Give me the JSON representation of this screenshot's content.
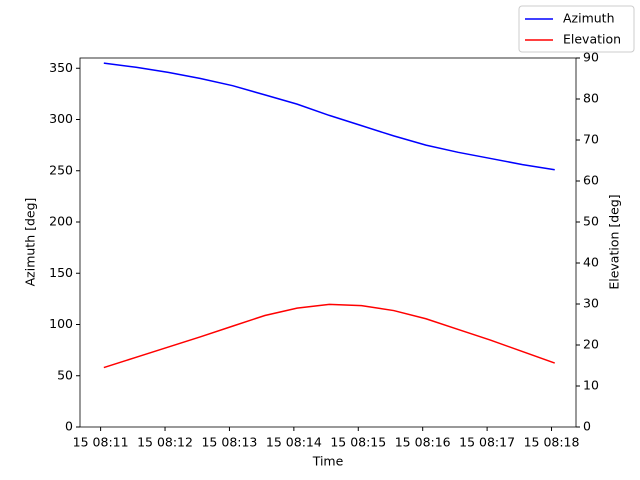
{
  "chart_data": {
    "type": "line",
    "xlabel": "Time",
    "ylabel": "Azimuth [deg]",
    "y2label": "Elevation [deg]",
    "x": [
      11.05,
      11.55,
      12.05,
      12.55,
      13.05,
      13.55,
      14.05,
      14.55,
      15.05,
      15.55,
      16.05,
      16.55,
      17.05,
      17.55,
      18.05
    ],
    "xlim": [
      10.68,
      18.38
    ],
    "xticks": [
      {
        "value": 11,
        "label": "15 08:11"
      },
      {
        "value": 12,
        "label": "15 08:12"
      },
      {
        "value": 13,
        "label": "15 08:13"
      },
      {
        "value": 14,
        "label": "15 08:14"
      },
      {
        "value": 15,
        "label": "15 08:15"
      },
      {
        "value": 16,
        "label": "15 08:16"
      },
      {
        "value": 17,
        "label": "15 08:17"
      },
      {
        "value": 18,
        "label": "15 08:18"
      }
    ],
    "ylim": [
      0,
      360
    ],
    "yticks": [
      0,
      50,
      100,
      150,
      200,
      250,
      300,
      350
    ],
    "y2lim": [
      0,
      90
    ],
    "y2ticks": [
      0,
      10,
      20,
      30,
      40,
      50,
      60,
      70,
      80,
      90
    ],
    "legend": "upper right",
    "series": [
      {
        "name": "Azimuth",
        "color": "#0000ff",
        "values": [
          355,
          351,
          346,
          340,
          333,
          324,
          315,
          304,
          294,
          284,
          275,
          268,
          262,
          256,
          251
        ]
      },
      {
        "name": "Elevation",
        "color": "#ff0000",
        "axis": "y2",
        "values": [
          14.5,
          17,
          19.5,
          22,
          24.6,
          27.2,
          29,
          29.9,
          29.6,
          28.4,
          26.4,
          23.8,
          21.2,
          18.4,
          15.6
        ]
      }
    ]
  }
}
